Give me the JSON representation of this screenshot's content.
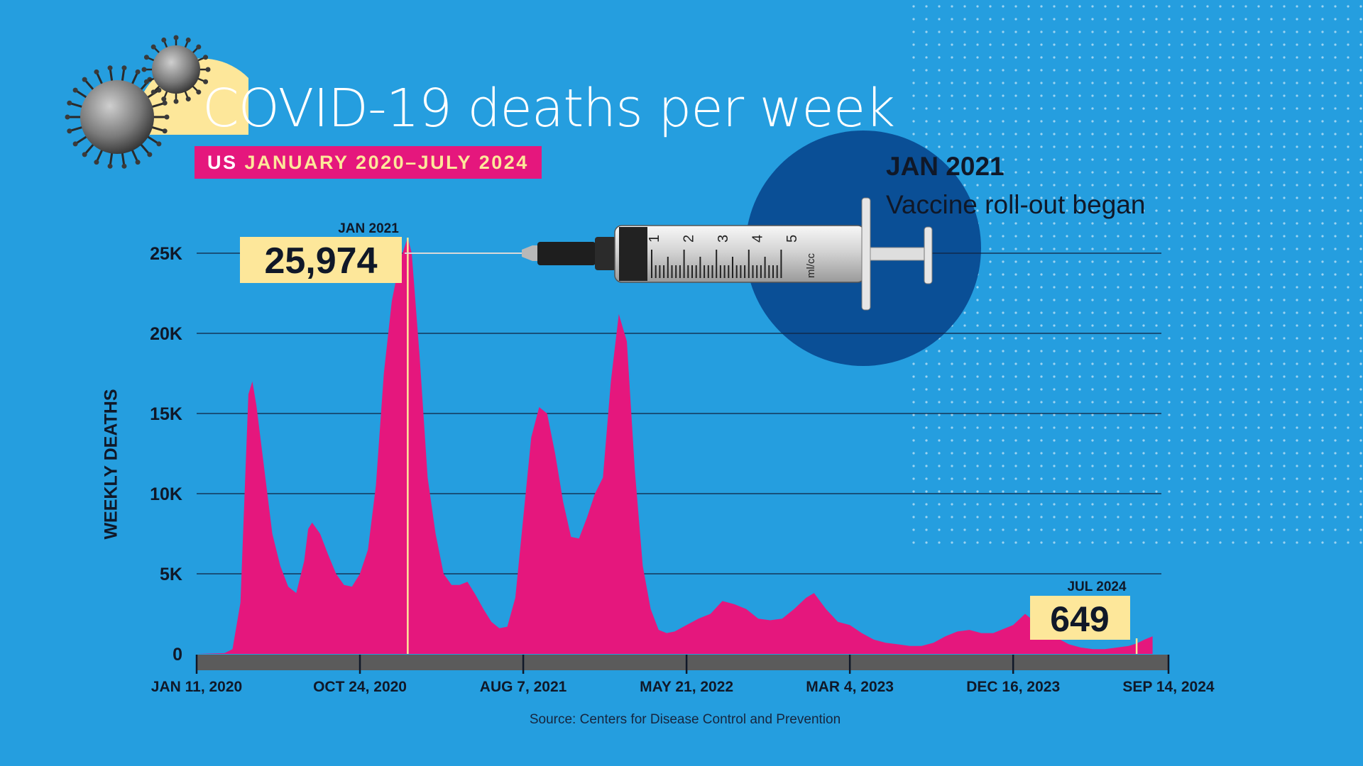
{
  "header": {
    "title": "COVID-19 deaths per week",
    "subtitle_a": "US",
    "subtitle_b": "JANUARY 2020–JULY 2024"
  },
  "annotation": {
    "heading": "JAN 2021",
    "text": "Vaccine roll-out began",
    "syringe_labels": [
      "1",
      "2",
      "3",
      "4",
      "5",
      "ml/cc"
    ]
  },
  "source": "Source: Centers for Disease Control and Prevention",
  "colors": {
    "background": "#259edf",
    "area": "#e5177d",
    "callout": "#fde79a",
    "vaccine_circle": "#0a4f96",
    "axis_bar": "#5b5b5b"
  },
  "chart_data": {
    "type": "area",
    "title": "COVID-19 deaths per week",
    "subtitle": "US JANUARY 2020–JULY 2024",
    "ylabel": "WEEKLY DEATHS",
    "xlabel": "",
    "ylim": [
      0,
      25000
    ],
    "xlim": [
      "2020-01-11",
      "2024-09-14"
    ],
    "grid": true,
    "y_ticks": [
      {
        "value": 0,
        "label": "0"
      },
      {
        "value": 5000,
        "label": "5K"
      },
      {
        "value": 10000,
        "label": "10K"
      },
      {
        "value": 15000,
        "label": "15K"
      },
      {
        "value": 20000,
        "label": "20K"
      },
      {
        "value": 25000,
        "label": "25K"
      }
    ],
    "x_ticks": [
      {
        "date": "2020-01-11",
        "label": "JAN 11, 2020"
      },
      {
        "date": "2020-10-24",
        "label": "OCT 24, 2020"
      },
      {
        "date": "2021-08-07",
        "label": "AUG 7, 2021"
      },
      {
        "date": "2022-05-21",
        "label": "MAY 21, 2022"
      },
      {
        "date": "2023-03-04",
        "label": "MAR 4, 2023"
      },
      {
        "date": "2023-12-16",
        "label": "DEC 16, 2023"
      },
      {
        "date": "2024-09-14",
        "label": "SEP 14, 2024"
      }
    ],
    "series": [
      {
        "values": [
          [
            "2020-01-11",
            0
          ],
          [
            "2020-02-29",
            50
          ],
          [
            "2020-03-14",
            300
          ],
          [
            "2020-03-28",
            3200
          ],
          [
            "2020-04-11",
            16200
          ],
          [
            "2020-04-18",
            17000
          ],
          [
            "2020-04-25",
            15500
          ],
          [
            "2020-05-09",
            11500
          ],
          [
            "2020-05-23",
            7500
          ],
          [
            "2020-06-06",
            5500
          ],
          [
            "2020-06-20",
            4200
          ],
          [
            "2020-07-04",
            3800
          ],
          [
            "2020-07-18",
            5800
          ],
          [
            "2020-07-25",
            7800
          ],
          [
            "2020-08-01",
            8200
          ],
          [
            "2020-08-15",
            7500
          ],
          [
            "2020-08-29",
            6200
          ],
          [
            "2020-09-12",
            5000
          ],
          [
            "2020-09-26",
            4300
          ],
          [
            "2020-10-10",
            4200
          ],
          [
            "2020-10-24",
            5000
          ],
          [
            "2020-11-07",
            6500
          ],
          [
            "2020-11-21",
            10500
          ],
          [
            "2020-12-05",
            17500
          ],
          [
            "2020-12-19",
            22000
          ],
          [
            "2021-01-02",
            24500
          ],
          [
            "2021-01-16",
            25974
          ],
          [
            "2021-01-23",
            25000
          ],
          [
            "2021-02-06",
            18500
          ],
          [
            "2021-02-20",
            11000
          ],
          [
            "2021-03-06",
            7500
          ],
          [
            "2021-03-20",
            5000
          ],
          [
            "2021-04-03",
            4300
          ],
          [
            "2021-04-17",
            4300
          ],
          [
            "2021-05-01",
            4500
          ],
          [
            "2021-05-15",
            3700
          ],
          [
            "2021-05-29",
            2800
          ],
          [
            "2021-06-12",
            2000
          ],
          [
            "2021-06-26",
            1600
          ],
          [
            "2021-07-10",
            1700
          ],
          [
            "2021-07-24",
            3500
          ],
          [
            "2021-08-07",
            8500
          ],
          [
            "2021-08-21",
            13500
          ],
          [
            "2021-09-04",
            15400
          ],
          [
            "2021-09-18",
            15000
          ],
          [
            "2021-10-02",
            12500
          ],
          [
            "2021-10-16",
            9500
          ],
          [
            "2021-10-30",
            7300
          ],
          [
            "2021-11-13",
            7200
          ],
          [
            "2021-11-27",
            8500
          ],
          [
            "2021-12-11",
            10000
          ],
          [
            "2021-12-25",
            11000
          ],
          [
            "2022-01-08",
            17000
          ],
          [
            "2022-01-22",
            21200
          ],
          [
            "2022-02-05",
            19500
          ],
          [
            "2022-02-19",
            11500
          ],
          [
            "2022-03-05",
            5500
          ],
          [
            "2022-03-19",
            2800
          ],
          [
            "2022-04-02",
            1500
          ],
          [
            "2022-04-16",
            1300
          ],
          [
            "2022-04-30",
            1400
          ],
          [
            "2022-05-21",
            1800
          ],
          [
            "2022-06-11",
            2200
          ],
          [
            "2022-07-02",
            2500
          ],
          [
            "2022-07-23",
            3300
          ],
          [
            "2022-08-13",
            3100
          ],
          [
            "2022-09-03",
            2800
          ],
          [
            "2022-09-24",
            2200
          ],
          [
            "2022-10-15",
            2100
          ],
          [
            "2022-11-05",
            2200
          ],
          [
            "2022-11-26",
            2800
          ],
          [
            "2022-12-17",
            3500
          ],
          [
            "2022-12-31",
            3800
          ],
          [
            "2023-01-21",
            2800
          ],
          [
            "2023-02-11",
            2000
          ],
          [
            "2023-03-04",
            1800
          ],
          [
            "2023-03-25",
            1300
          ],
          [
            "2023-04-15",
            900
          ],
          [
            "2023-05-06",
            700
          ],
          [
            "2023-05-27",
            600
          ],
          [
            "2023-06-17",
            500
          ],
          [
            "2023-07-08",
            500
          ],
          [
            "2023-07-29",
            700
          ],
          [
            "2023-08-19",
            1100
          ],
          [
            "2023-09-09",
            1400
          ],
          [
            "2023-09-30",
            1500
          ],
          [
            "2023-10-21",
            1300
          ],
          [
            "2023-11-11",
            1300
          ],
          [
            "2023-12-02",
            1600
          ],
          [
            "2023-12-16",
            1800
          ],
          [
            "2024-01-06",
            2500
          ],
          [
            "2024-01-20",
            2100
          ],
          [
            "2024-02-10",
            1500
          ],
          [
            "2024-03-02",
            1000
          ],
          [
            "2024-03-23",
            600
          ],
          [
            "2024-04-13",
            400
          ],
          [
            "2024-05-04",
            300
          ],
          [
            "2024-05-25",
            300
          ],
          [
            "2024-06-15",
            400
          ],
          [
            "2024-07-06",
            500
          ],
          [
            "2024-07-20",
            649
          ],
          [
            "2024-08-03",
            900
          ],
          [
            "2024-08-17",
            1100
          ]
        ]
      }
    ],
    "annotations": [
      {
        "date": "2021-01-16",
        "value": 25974,
        "label": "25,974",
        "date_label": "JAN 2021"
      },
      {
        "date": "2024-07-20",
        "value": 649,
        "label": "649",
        "date_label": "JUL 2024"
      }
    ]
  }
}
